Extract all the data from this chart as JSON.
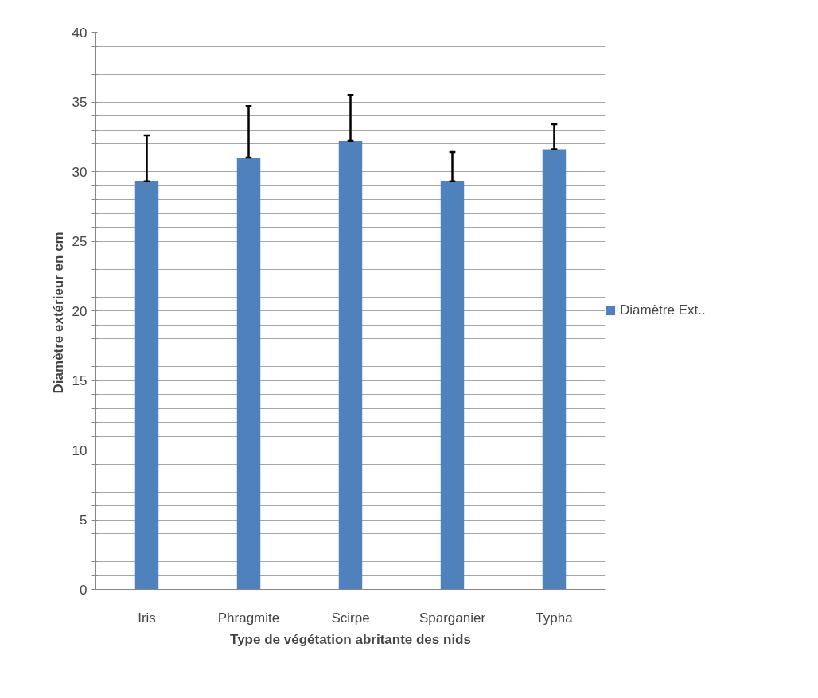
{
  "chart_data": {
    "type": "bar",
    "xlabel": "Type de végétation abritante des nids",
    "ylabel": "Diamètre extérieur  en cm",
    "categories": [
      "Iris",
      "Phragmite",
      "Scirpe",
      "Sparganier",
      "Typha"
    ],
    "series": [
      {
        "name": "Diamètre Ext..",
        "color": "#4f81bd",
        "values": [
          29.3,
          31.0,
          32.2,
          29.3,
          31.6
        ],
        "errors": [
          [
            29.3,
            32.6
          ],
          [
            31.0,
            34.7
          ],
          [
            32.2,
            35.5
          ],
          [
            29.3,
            31.4
          ],
          [
            31.6,
            33.4
          ]
        ]
      }
    ],
    "ylim": [
      0,
      40
    ],
    "yticks": [
      0,
      {
        "value": 1,
        "label": null
      },
      {
        "value": 2,
        "label": null
      },
      {
        "value": 3,
        "label": null
      },
      {
        "value": 4,
        "label": null
      },
      5,
      {
        "value": 6,
        "label": null
      },
      {
        "value": 7,
        "label": null
      },
      {
        "value": 8,
        "label": null
      },
      {
        "value": 9,
        "label": null
      },
      10,
      {
        "value": 11,
        "label": null
      },
      {
        "value": 12,
        "label": null
      },
      {
        "value": 13,
        "label": null
      },
      {
        "value": 14,
        "label": null
      },
      15,
      {
        "value": 16,
        "label": null
      },
      {
        "value": 17,
        "label": null
      },
      {
        "value": 18,
        "label": null
      },
      {
        "value": 19,
        "label": null
      },
      20,
      {
        "value": 21,
        "label": null
      },
      {
        "value": 22,
        "label": null
      },
      {
        "value": 23,
        "label": null
      },
      {
        "value": 24,
        "label": null
      },
      25,
      {
        "value": 26,
        "label": null
      },
      {
        "value": 27,
        "label": null
      },
      {
        "value": 28,
        "label": null
      },
      {
        "value": 29,
        "label": null
      },
      30,
      {
        "value": 31,
        "label": null
      },
      {
        "value": 32,
        "label": null
      },
      {
        "value": 33,
        "label": null
      },
      {
        "value": 34,
        "label": null
      },
      35,
      {
        "value": 36,
        "label": null
      },
      {
        "value": 37,
        "label": null
      },
      {
        "value": 38,
        "label": null
      },
      {
        "value": 39,
        "label": null
      },
      40
    ],
    "grid": "y",
    "legend": "right"
  }
}
